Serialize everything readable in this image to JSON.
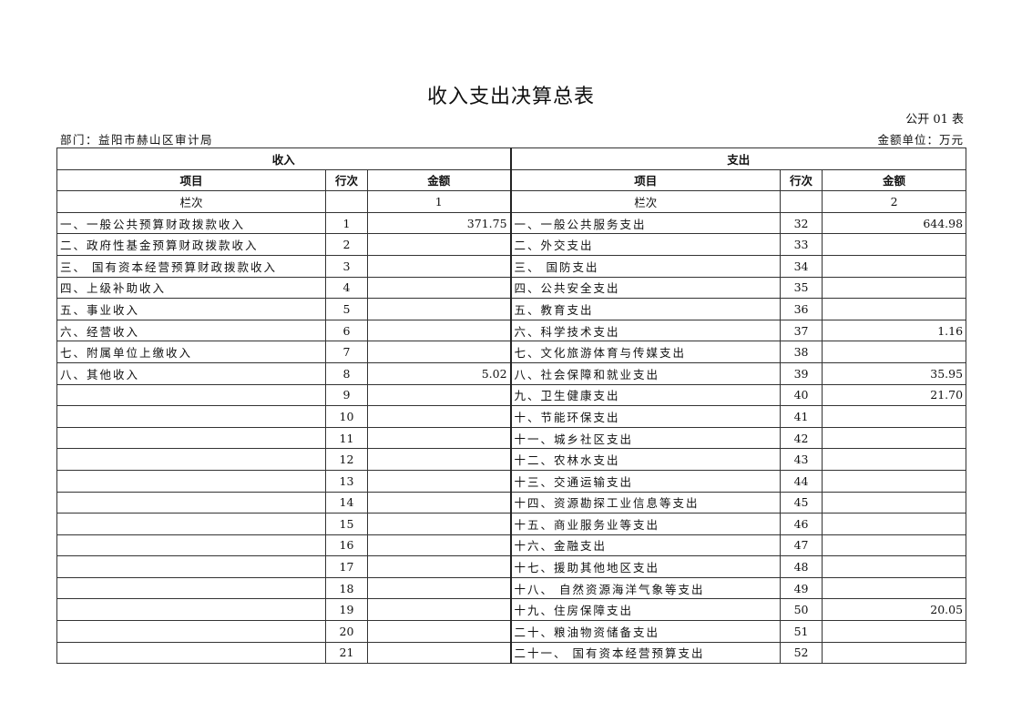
{
  "title": "收入支出决算总表",
  "form_no": "公开 01 表",
  "department": "部门：益阳市赫山区审计局",
  "unit": "金额单位：万元",
  "headers": {
    "income": "收入",
    "expense": "支出",
    "item": "项目",
    "line": "行次",
    "amount": "金额",
    "column_label": "栏次",
    "income_col_no": "1",
    "expense_col_no": "2"
  },
  "rows": [
    {
      "in_item": "一、一般公共预算财政拨款收入",
      "in_line": "1",
      "in_amt": "371.75",
      "ex_item": "一、一般公共服务支出",
      "ex_line": "32",
      "ex_amt": "644.98"
    },
    {
      "in_item": "二、政府性基金预算财政拨款收入",
      "in_line": "2",
      "in_amt": "",
      "ex_item": "二、外交支出",
      "ex_line": "33",
      "ex_amt": ""
    },
    {
      "in_item": "三、 国有资本经营预算财政拨款收入",
      "in_line": "3",
      "in_amt": "",
      "ex_item": "三、 国防支出",
      "ex_line": "34",
      "ex_amt": ""
    },
    {
      "in_item": "四、上级补助收入",
      "in_line": "4",
      "in_amt": "",
      "ex_item": "四、公共安全支出",
      "ex_line": "35",
      "ex_amt": ""
    },
    {
      "in_item": "五、事业收入",
      "in_line": "5",
      "in_amt": "",
      "ex_item": "五、教育支出",
      "ex_line": "36",
      "ex_amt": ""
    },
    {
      "in_item": "六、经营收入",
      "in_line": "6",
      "in_amt": "",
      "ex_item": "六、科学技术支出",
      "ex_line": "37",
      "ex_amt": "1.16"
    },
    {
      "in_item": "七、附属单位上缴收入",
      "in_line": "7",
      "in_amt": "",
      "ex_item": "七、文化旅游体育与传媒支出",
      "ex_line": "38",
      "ex_amt": ""
    },
    {
      "in_item": "八、其他收入",
      "in_line": "8",
      "in_amt": "5.02",
      "ex_item": "八、社会保障和就业支出",
      "ex_line": "39",
      "ex_amt": "35.95"
    },
    {
      "in_item": "",
      "in_line": "9",
      "in_amt": "",
      "ex_item": "九、卫生健康支出",
      "ex_line": "40",
      "ex_amt": "21.70"
    },
    {
      "in_item": "",
      "in_line": "10",
      "in_amt": "",
      "ex_item": "十、节能环保支出",
      "ex_line": "41",
      "ex_amt": ""
    },
    {
      "in_item": "",
      "in_line": "11",
      "in_amt": "",
      "ex_item": "十一、城乡社区支出",
      "ex_line": "42",
      "ex_amt": ""
    },
    {
      "in_item": "",
      "in_line": "12",
      "in_amt": "",
      "ex_item": "十二、农林水支出",
      "ex_line": "43",
      "ex_amt": ""
    },
    {
      "in_item": "",
      "in_line": "13",
      "in_amt": "",
      "ex_item": "十三、交通运输支出",
      "ex_line": "44",
      "ex_amt": ""
    },
    {
      "in_item": "",
      "in_line": "14",
      "in_amt": "",
      "ex_item": "十四、资源勘探工业信息等支出",
      "ex_line": "45",
      "ex_amt": ""
    },
    {
      "in_item": "",
      "in_line": "15",
      "in_amt": "",
      "ex_item": "十五、商业服务业等支出",
      "ex_line": "46",
      "ex_amt": ""
    },
    {
      "in_item": "",
      "in_line": "16",
      "in_amt": "",
      "ex_item": "十六、金融支出",
      "ex_line": "47",
      "ex_amt": ""
    },
    {
      "in_item": "",
      "in_line": "17",
      "in_amt": "",
      "ex_item": "十七、援助其他地区支出",
      "ex_line": "48",
      "ex_amt": ""
    },
    {
      "in_item": "",
      "in_line": "18",
      "in_amt": "",
      "ex_item": "十八、 自然资源海洋气象等支出",
      "ex_line": "49",
      "ex_amt": ""
    },
    {
      "in_item": "",
      "in_line": "19",
      "in_amt": "",
      "ex_item": "十九、住房保障支出",
      "ex_line": "50",
      "ex_amt": "20.05"
    },
    {
      "in_item": "",
      "in_line": "20",
      "in_amt": "",
      "ex_item": "二十、粮油物资储备支出",
      "ex_line": "51",
      "ex_amt": ""
    },
    {
      "in_item": "",
      "in_line": "21",
      "in_amt": "",
      "ex_item": "二十一、 国有资本经营预算支出",
      "ex_line": "52",
      "ex_amt": ""
    }
  ]
}
